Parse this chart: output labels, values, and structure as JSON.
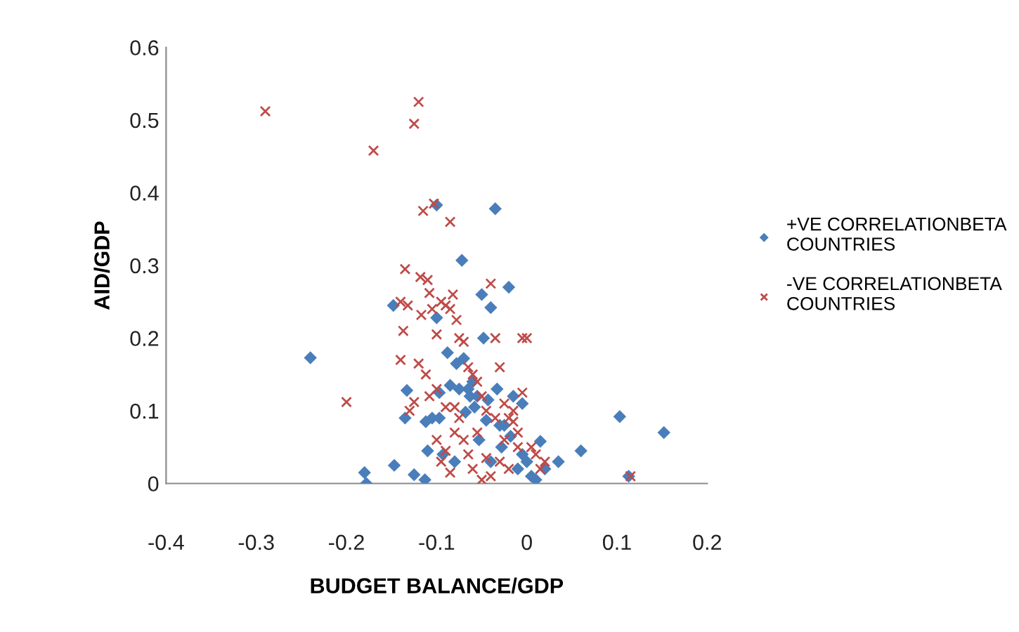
{
  "chart_data": {
    "type": "scatter",
    "xlabel": "BUDGET BALANCE/GDP",
    "ylabel": "AID/GDP",
    "xlim": [
      -0.4,
      0.2
    ],
    "ylim": [
      0,
      0.6
    ],
    "xticks": [
      -0.4,
      -0.3,
      -0.2,
      -0.1,
      0,
      0.1,
      0.2
    ],
    "yticks": [
      0,
      0.1,
      0.2,
      0.3,
      0.4,
      0.5,
      0.6
    ],
    "grid": false,
    "legend": "right",
    "series": [
      {
        "name": "+VE CORRELATIONBETA COUNTRIES",
        "color": "#4a7ebb",
        "marker": "diamond",
        "x": [
          -0.24,
          -0.18,
          -0.178,
          -0.148,
          -0.147,
          -0.133,
          -0.135,
          -0.125,
          -0.113,
          -0.112,
          -0.11,
          -0.105,
          -0.1,
          -0.1,
          -0.097,
          -0.097,
          -0.093,
          -0.088,
          -0.085,
          -0.08,
          -0.078,
          -0.075,
          -0.072,
          -0.07,
          -0.068,
          -0.065,
          -0.063,
          -0.06,
          -0.058,
          -0.055,
          -0.053,
          -0.05,
          -0.048,
          -0.045,
          -0.043,
          -0.04,
          -0.04,
          -0.035,
          -0.033,
          -0.03,
          -0.028,
          -0.025,
          -0.02,
          -0.018,
          -0.015,
          -0.01,
          -0.005,
          -0.005,
          0.0,
          0.005,
          0.01,
          0.015,
          0.02,
          0.035,
          0.06,
          0.103,
          0.113,
          0.152
        ],
        "values": [
          0.173,
          0.015,
          0.0,
          0.245,
          0.025,
          0.128,
          0.09,
          0.012,
          0.005,
          0.085,
          0.045,
          0.09,
          0.383,
          0.228,
          0.125,
          0.09,
          0.04,
          0.18,
          0.135,
          0.03,
          0.165,
          0.13,
          0.307,
          0.172,
          0.098,
          0.13,
          0.12,
          0.14,
          0.105,
          0.12,
          0.06,
          0.26,
          0.2,
          0.087,
          0.115,
          0.242,
          0.03,
          0.378,
          0.13,
          0.08,
          0.05,
          0.08,
          0.27,
          0.065,
          0.12,
          0.02,
          0.11,
          0.04,
          0.03,
          0.01,
          0.005,
          0.058,
          0.02,
          0.03,
          0.045,
          0.092,
          0.01,
          0.07
        ]
      },
      {
        "name": "-VE CORRELATIONBETA COUNTRIES",
        "color": "#be4b48",
        "marker": "cross",
        "x": [
          -0.29,
          -0.17,
          -0.12,
          -0.125,
          -0.115,
          -0.103,
          -0.085,
          -0.2,
          -0.14,
          -0.132,
          -0.135,
          -0.118,
          -0.117,
          -0.137,
          -0.14,
          -0.12,
          -0.125,
          -0.13,
          -0.11,
          -0.108,
          -0.105,
          -0.1,
          -0.095,
          -0.09,
          -0.085,
          -0.082,
          -0.078,
          -0.075,
          -0.07,
          -0.065,
          -0.06,
          -0.055,
          -0.05,
          -0.045,
          -0.04,
          -0.035,
          -0.03,
          -0.025,
          -0.02,
          -0.015,
          -0.01,
          -0.005,
          0.0,
          -0.005,
          0.005,
          0.01,
          0.015,
          0.02,
          0.115,
          -0.1,
          -0.095,
          -0.09,
          -0.085,
          -0.08,
          -0.075,
          -0.07,
          -0.065,
          -0.06,
          -0.055,
          -0.05,
          -0.045,
          -0.04,
          -0.035,
          -0.03,
          -0.025,
          -0.02,
          -0.015,
          -0.01,
          -0.108,
          -0.112,
          -0.1,
          -0.09,
          -0.08
        ],
        "values": [
          0.512,
          0.458,
          0.525,
          0.495,
          0.375,
          0.385,
          0.36,
          0.112,
          0.25,
          0.245,
          0.295,
          0.284,
          0.232,
          0.21,
          0.17,
          0.165,
          0.112,
          0.1,
          0.28,
          0.262,
          0.24,
          0.205,
          0.25,
          0.245,
          0.24,
          0.26,
          0.225,
          0.2,
          0.195,
          0.16,
          0.15,
          0.14,
          0.12,
          0.1,
          0.275,
          0.2,
          0.16,
          0.11,
          0.09,
          0.085,
          0.05,
          0.2,
          0.2,
          0.125,
          0.05,
          0.04,
          0.02,
          0.03,
          0.01,
          0.06,
          0.03,
          0.045,
          0.015,
          0.07,
          0.09,
          0.06,
          0.04,
          0.02,
          0.07,
          0.005,
          0.035,
          0.01,
          0.09,
          0.03,
          0.06,
          0.02,
          0.1,
          0.07,
          0.12,
          0.15,
          0.13,
          0.105,
          0.105
        ]
      }
    ]
  }
}
